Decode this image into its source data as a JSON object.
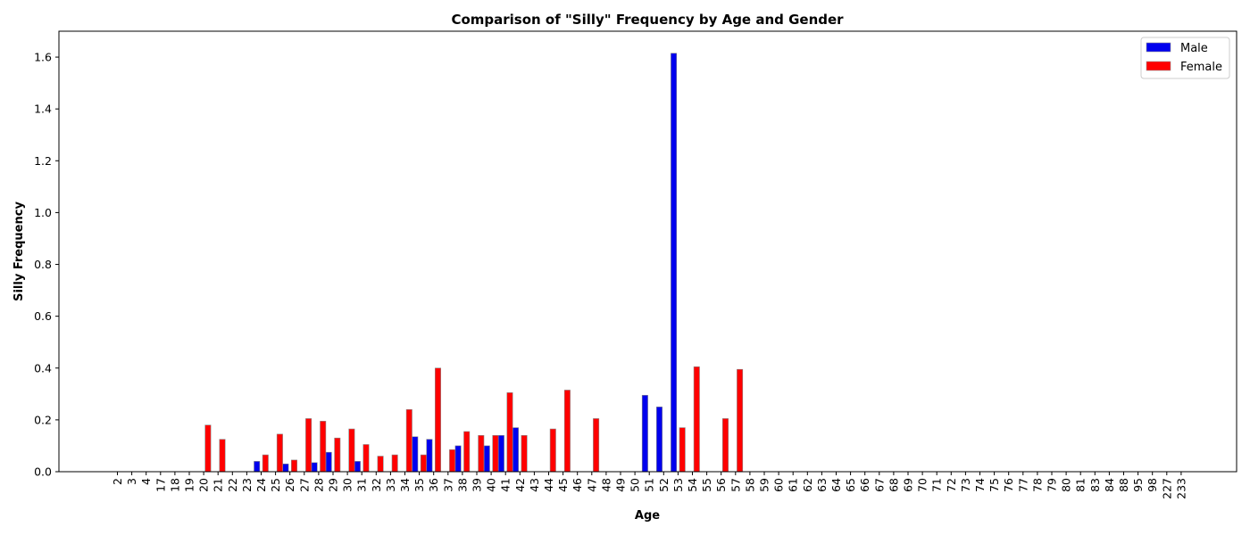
{
  "chart_data": {
    "type": "bar",
    "title": "Comparison of \"Silly\" Frequency by Age and Gender",
    "xlabel": "Age",
    "ylabel": "Silly Frequency",
    "ylim": [
      0,
      1.7
    ],
    "yticks": [
      0.0,
      0.2,
      0.4,
      0.6,
      0.8,
      1.0,
      1.2,
      1.4,
      1.6
    ],
    "grid": false,
    "legend_position": "top-right",
    "categories": [
      "2",
      "3",
      "4",
      "17",
      "18",
      "19",
      "20",
      "21",
      "22",
      "23",
      "24",
      "25",
      "26",
      "27",
      "28",
      "29",
      "30",
      "31",
      "32",
      "33",
      "34",
      "35",
      "36",
      "37",
      "38",
      "39",
      "40",
      "41",
      "42",
      "43",
      "44",
      "45",
      "46",
      "47",
      "48",
      "49",
      "50",
      "51",
      "52",
      "53",
      "54",
      "55",
      "56",
      "57",
      "58",
      "59",
      "60",
      "61",
      "62",
      "63",
      "64",
      "65",
      "66",
      "67",
      "68",
      "69",
      "70",
      "71",
      "72",
      "73",
      "74",
      "75",
      "76",
      "77",
      "78",
      "79",
      "80",
      "81",
      "83",
      "84",
      "88",
      "95",
      "98",
      "227",
      "233"
    ],
    "series": [
      {
        "name": "Male",
        "color": "#0000ee",
        "values": [
          0,
          0,
          0,
          0,
          0,
          0,
          0,
          0,
          0,
          0,
          0.04,
          0,
          0.03,
          0,
          0.035,
          0.075,
          0,
          0.04,
          0,
          0,
          0,
          0.135,
          0.125,
          0,
          0.1,
          0,
          0.1,
          0.14,
          0.17,
          0,
          0,
          0,
          0,
          0,
          0,
          0,
          0,
          0.295,
          0.25,
          1.615,
          0,
          0,
          0,
          0,
          0,
          0,
          0,
          0,
          0,
          0,
          0,
          0,
          0,
          0,
          0,
          0,
          0,
          0,
          0,
          0,
          0,
          0,
          0,
          0,
          0,
          0,
          0,
          0,
          0,
          0,
          0,
          0,
          0,
          0,
          0
        ]
      },
      {
        "name": "Female",
        "color": "#ff0000",
        "values": [
          0,
          0,
          0,
          0,
          0,
          0,
          0.18,
          0.125,
          0,
          0,
          0.065,
          0.145,
          0.045,
          0.205,
          0.195,
          0.13,
          0.165,
          0.105,
          0.06,
          0.065,
          0.24,
          0.065,
          0.4,
          0.085,
          0.155,
          0.14,
          0.14,
          0.305,
          0.14,
          0,
          0.165,
          0.315,
          0,
          0.205,
          0,
          0,
          0,
          0,
          0,
          0.17,
          0.405,
          0,
          0.205,
          0.395,
          0,
          0,
          0,
          0,
          0,
          0,
          0,
          0,
          0,
          0,
          0,
          0,
          0,
          0,
          0,
          0,
          0,
          0,
          0,
          0,
          0,
          0,
          0,
          0,
          0,
          0,
          0,
          0,
          0,
          0,
          0
        ]
      }
    ]
  }
}
